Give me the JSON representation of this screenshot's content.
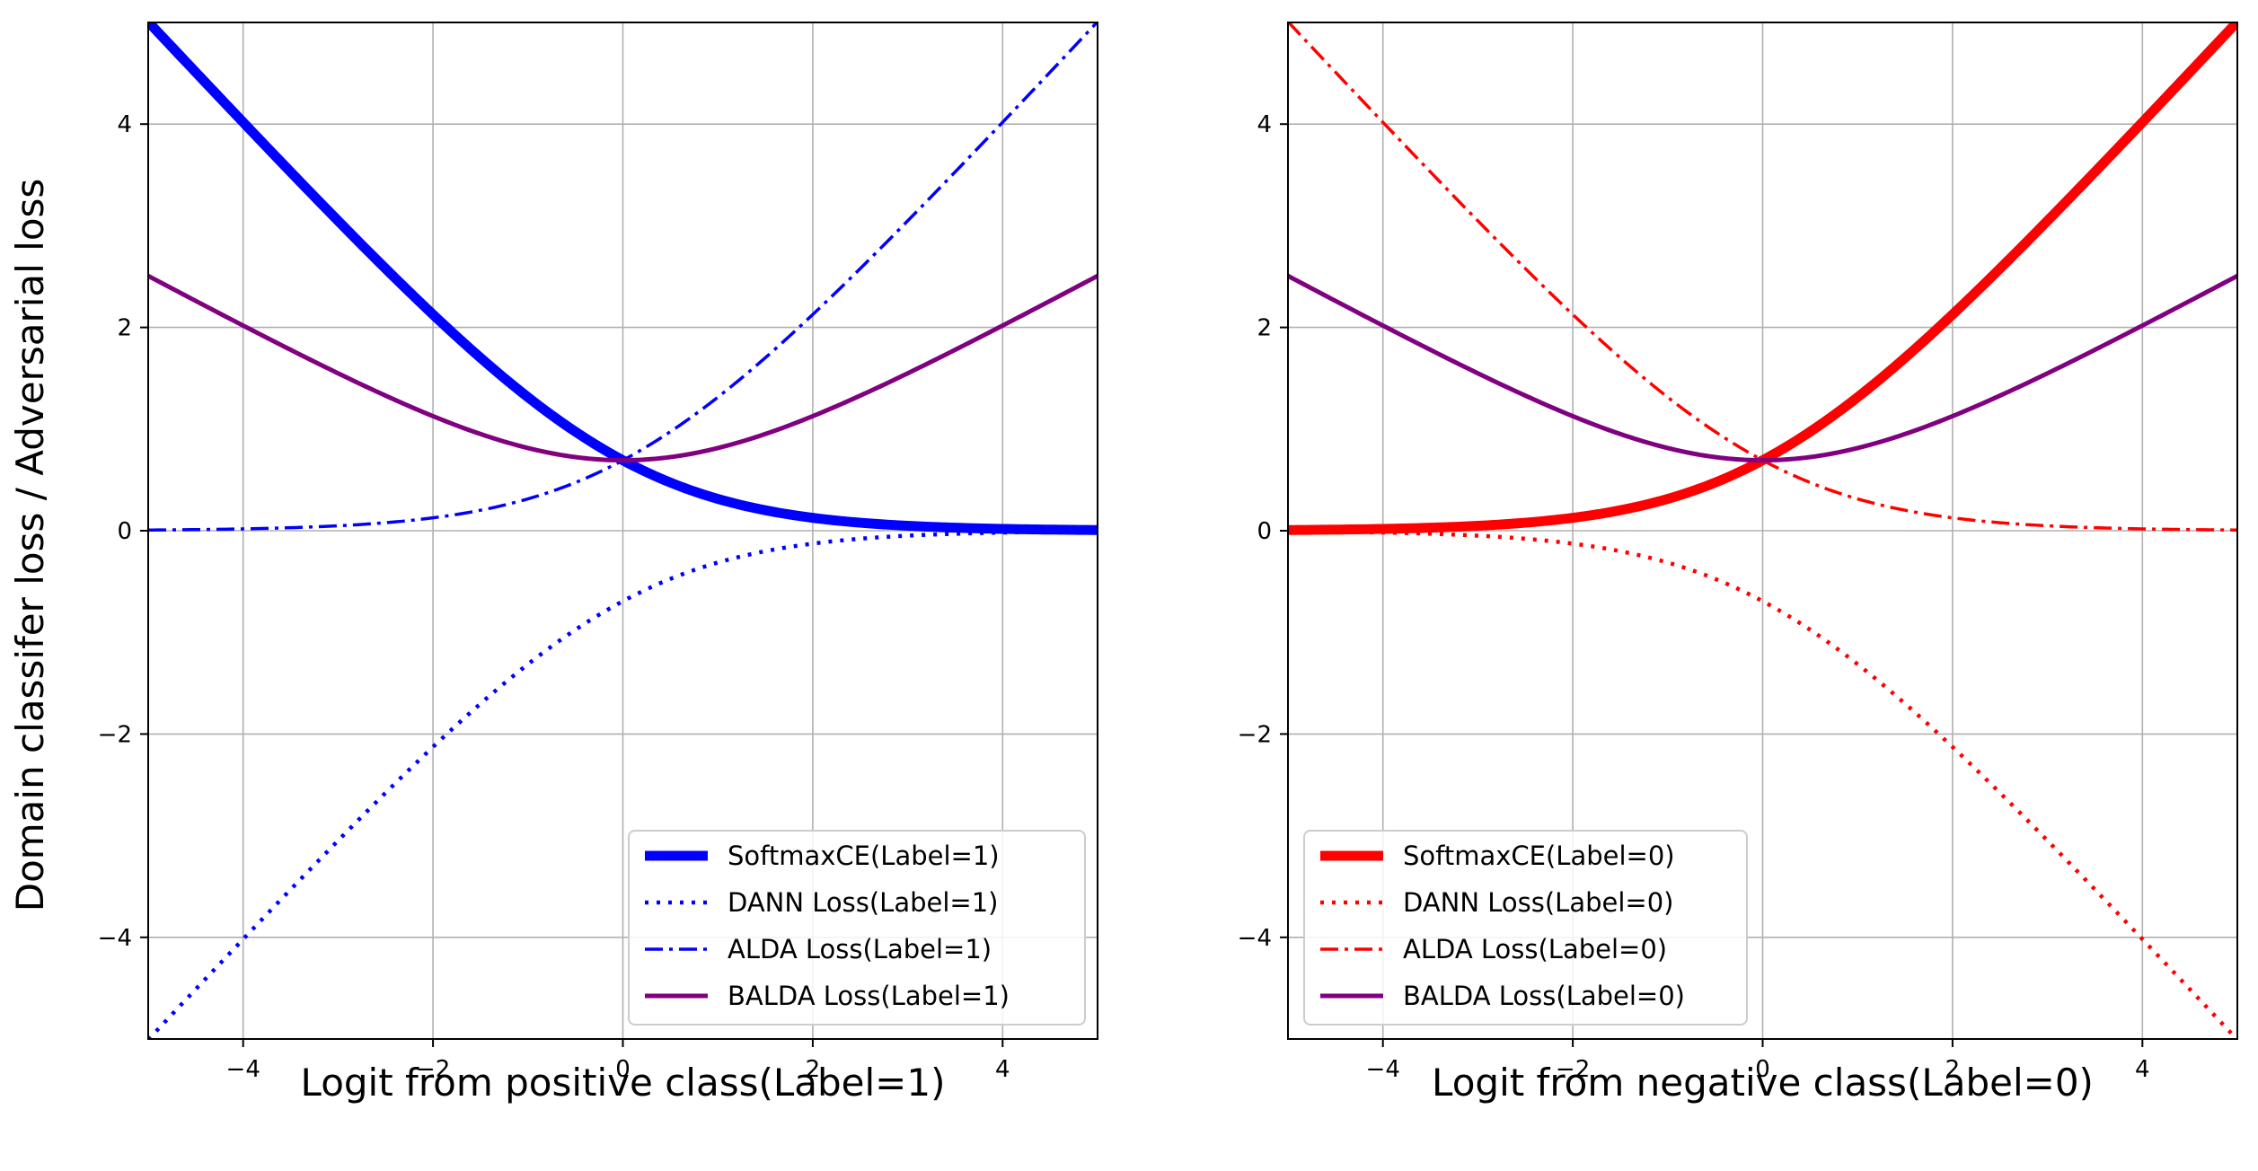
{
  "figure": {
    "ylabel": "Domain classifer loss / Adversarial loss"
  },
  "chart_data": [
    {
      "type": "line",
      "xlabel": "Logit from positive class(Label=1)",
      "xlim": [
        -5,
        5
      ],
      "ylim": [
        -5,
        5
      ],
      "xticks": [
        -4,
        -2,
        0,
        2,
        4
      ],
      "yticks": [
        -4,
        -2,
        0,
        2,
        4
      ],
      "grid": true,
      "legend_position": "lower-right",
      "x": [
        -5,
        -4,
        -3,
        -2,
        -1,
        0,
        1,
        2,
        3,
        4,
        5
      ],
      "series": [
        {
          "name": "SoftmaxCE(Label=1)",
          "color": "#0000ff",
          "style": "solid-thick",
          "values": [
            5.007,
            4.018,
            3.049,
            2.127,
            1.313,
            0.693,
            0.313,
            0.127,
            0.049,
            0.018,
            0.007
          ]
        },
        {
          "name": "DANN Loss(Label=1)",
          "color": "#0000ff",
          "style": "dotted",
          "values": [
            -5.007,
            -4.018,
            -3.049,
            -2.127,
            -1.313,
            -0.693,
            -0.313,
            -0.127,
            -0.049,
            -0.018,
            -0.007
          ]
        },
        {
          "name": "ALDA Loss(Label=1)",
          "color": "#0000ff",
          "style": "dashdot",
          "values": [
            0.007,
            0.018,
            0.049,
            0.127,
            0.313,
            0.693,
            1.313,
            2.127,
            3.049,
            4.018,
            5.007
          ]
        },
        {
          "name": "BALDA Loss(Label=1)",
          "color": "#800080",
          "style": "solid",
          "values": [
            2.507,
            2.018,
            1.549,
            1.127,
            0.813,
            0.693,
            0.813,
            1.127,
            1.549,
            2.018,
            2.507
          ]
        }
      ]
    },
    {
      "type": "line",
      "xlabel": "Logit from negative class(Label=0)",
      "xlim": [
        -5,
        5
      ],
      "ylim": [
        -5,
        5
      ],
      "xticks": [
        -4,
        -2,
        0,
        2,
        4
      ],
      "yticks": [
        -4,
        -2,
        0,
        2,
        4
      ],
      "grid": true,
      "legend_position": "lower-left",
      "x": [
        -5,
        -4,
        -3,
        -2,
        -1,
        0,
        1,
        2,
        3,
        4,
        5
      ],
      "series": [
        {
          "name": "SoftmaxCE(Label=0)",
          "color": "#ff0000",
          "style": "solid-thick",
          "values": [
            0.007,
            0.018,
            0.049,
            0.127,
            0.313,
            0.693,
            1.313,
            2.127,
            3.049,
            4.018,
            5.007
          ]
        },
        {
          "name": "DANN Loss(Label=0)",
          "color": "#ff0000",
          "style": "dotted",
          "values": [
            -0.007,
            -0.018,
            -0.049,
            -0.127,
            -0.313,
            -0.693,
            -1.313,
            -2.127,
            -3.049,
            -4.018,
            -5.007
          ]
        },
        {
          "name": "ALDA Loss(Label=0)",
          "color": "#ff0000",
          "style": "dashdot",
          "values": [
            5.007,
            4.018,
            3.049,
            2.127,
            1.313,
            0.693,
            0.313,
            0.127,
            0.049,
            0.018,
            0.007
          ]
        },
        {
          "name": "BALDA Loss(Label=0)",
          "color": "#800080",
          "style": "solid",
          "values": [
            2.507,
            2.018,
            1.549,
            1.127,
            0.813,
            0.693,
            0.813,
            1.127,
            1.549,
            2.018,
            2.507
          ]
        }
      ]
    }
  ]
}
